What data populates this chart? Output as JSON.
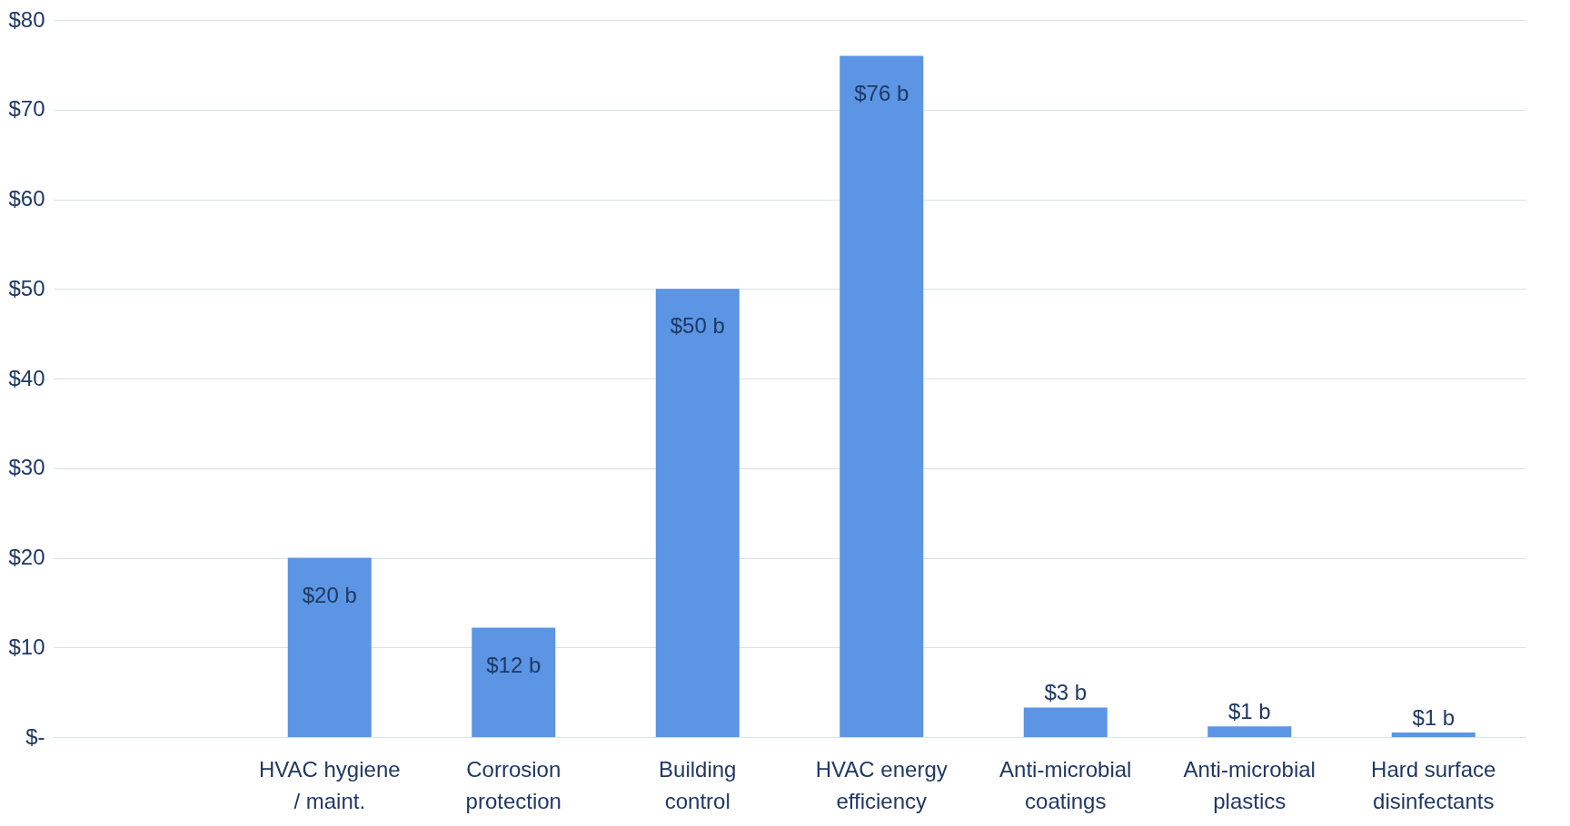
{
  "chart_data": {
    "type": "bar",
    "categories": [
      null,
      "HVAC hygiene / maint.",
      "Corrosion protection",
      "Building control",
      "HVAC energy efficiency",
      "Anti-microbial coatings",
      "Anti-microbial plastics",
      "Hard surface disinfectants"
    ],
    "values": [
      null,
      20,
      12.2,
      50,
      76,
      3.3,
      1.2,
      0.5
    ],
    "value_labels": [
      null,
      "$20 b",
      "$12 b",
      "$50 b",
      "$76 b",
      "$3 b",
      "$1 b",
      "$1 b"
    ],
    "color": "#5b95e3",
    "ylim": [
      0,
      80
    ],
    "yticks": [
      {
        "value": 0,
        "label": "$-"
      },
      {
        "value": 10,
        "label": "$10"
      },
      {
        "value": 20,
        "label": "$20"
      },
      {
        "value": 30,
        "label": "$30"
      },
      {
        "value": 40,
        "label": "$40"
      },
      {
        "value": 50,
        "label": "$50"
      },
      {
        "value": 60,
        "label": "$60"
      },
      {
        "value": 70,
        "label": "$70"
      },
      {
        "value": 80,
        "label": "$80"
      }
    ],
    "grid": "y"
  }
}
